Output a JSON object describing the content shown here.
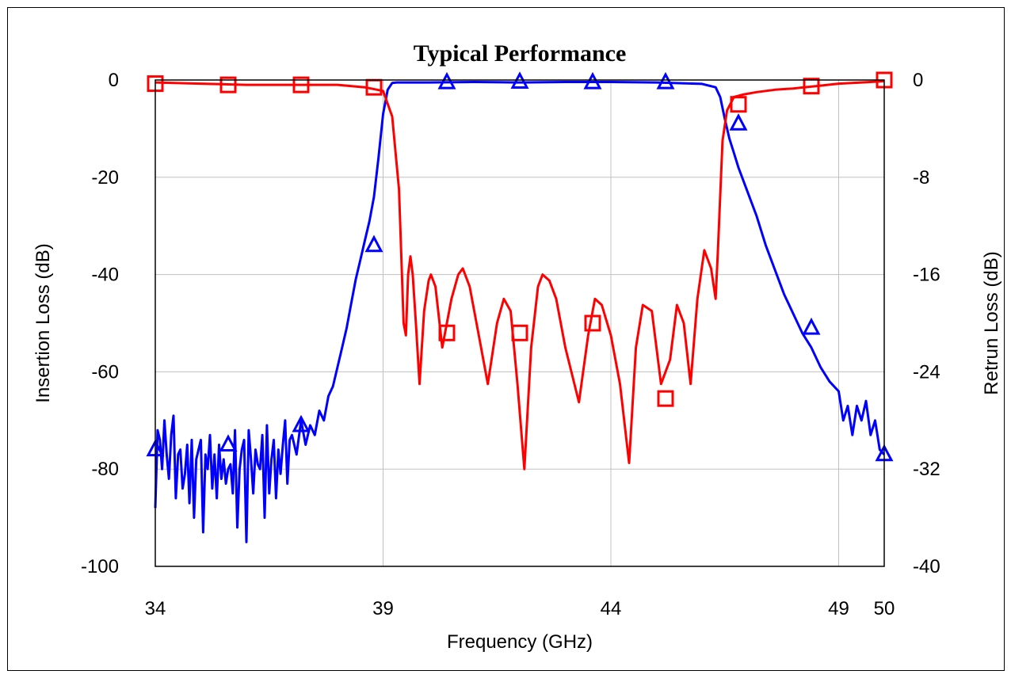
{
  "chart_data": {
    "type": "line",
    "title": "Typical Performance",
    "xlabel": "Frequency (GHz)",
    "ylabel": "Insertion Loss (dB)",
    "y2label": "Retrun Loss (dB)",
    "xlim": [
      34,
      50
    ],
    "ylim": [
      -100,
      0
    ],
    "y2lim": [
      -40,
      0
    ],
    "x_ticks": [
      34,
      39,
      44,
      49,
      50
    ],
    "y_ticks": [
      0,
      -20,
      -40,
      -60,
      -80,
      -100
    ],
    "y2_ticks": [
      0,
      -8,
      -16,
      -24,
      -32,
      -40
    ],
    "grid": true,
    "series": [
      {
        "axis": "left",
        "color": "#0000FF",
        "marker": "triangle",
        "x": [
          34.0,
          34.05,
          34.1,
          34.15,
          34.2,
          34.25,
          34.3,
          34.35,
          34.4,
          34.45,
          34.5,
          34.55,
          34.6,
          34.65,
          34.7,
          34.75,
          34.8,
          34.85,
          34.9,
          34.95,
          35.0,
          35.05,
          35.1,
          35.15,
          35.2,
          35.25,
          35.3,
          35.35,
          35.4,
          35.45,
          35.5,
          35.55,
          35.6,
          35.65,
          35.7,
          35.75,
          35.8,
          35.85,
          35.9,
          35.95,
          36.0,
          36.05,
          36.1,
          36.15,
          36.2,
          36.25,
          36.3,
          36.35,
          36.4,
          36.45,
          36.5,
          36.55,
          36.6,
          36.65,
          36.7,
          36.75,
          36.8,
          36.85,
          36.9,
          36.95,
          37.0,
          37.1,
          37.2,
          37.3,
          37.4,
          37.5,
          37.6,
          37.7,
          37.8,
          37.9,
          38.0,
          38.1,
          38.2,
          38.3,
          38.4,
          38.5,
          38.6,
          38.7,
          38.8,
          38.9,
          39.0,
          39.1,
          39.2,
          39.3,
          39.4,
          39.5,
          39.6,
          39.8,
          40.0,
          41.0,
          42.0,
          43.0,
          44.0,
          45.0,
          46.0,
          46.3,
          46.4,
          46.5,
          46.6,
          46.7,
          46.8,
          47.0,
          47.2,
          47.4,
          47.6,
          47.8,
          48.0,
          48.2,
          48.4,
          48.6,
          48.8,
          49.0,
          49.1,
          49.2,
          49.3,
          49.4,
          49.5,
          49.6,
          49.7,
          49.8,
          49.9,
          50.0
        ],
        "values": [
          -88,
          -72,
          -74,
          -80,
          -70,
          -77,
          -82,
          -73,
          -69,
          -86,
          -77,
          -76,
          -84,
          -81,
          -75,
          -87,
          -74,
          -90,
          -78,
          -76,
          -74,
          -93,
          -77,
          -80,
          -73,
          -84,
          -77,
          -86,
          -75,
          -82,
          -78,
          -83,
          -80,
          -79,
          -85,
          -72,
          -92,
          -80,
          -76,
          -74,
          -95,
          -72,
          -78,
          -85,
          -76,
          -79,
          -80,
          -73,
          -90,
          -71,
          -85,
          -78,
          -74,
          -86,
          -76,
          -81,
          -75,
          -70,
          -83,
          -74,
          -73,
          -77,
          -70,
          -75,
          -71,
          -73,
          -68,
          -70,
          -65,
          -63,
          -59,
          -55,
          -51,
          -46,
          -41,
          -37,
          -33,
          -29,
          -24,
          -16,
          -7,
          -2,
          -0.6,
          -0.5,
          -0.5,
          -0.5,
          -0.5,
          -0.5,
          -0.5,
          -0.4,
          -0.5,
          -0.4,
          -0.4,
          -0.5,
          -0.8,
          -1.5,
          -3.5,
          -8,
          -12,
          -15,
          -18,
          -23,
          -28,
          -34,
          -39,
          -44,
          -48,
          -52,
          -55,
          -59,
          -62,
          -64,
          -70,
          -67,
          -73,
          -67,
          -70,
          -66,
          -73,
          -70,
          -76,
          -77
        ],
        "marker_x": [
          34.0,
          35.6,
          37.2,
          38.8,
          40.4,
          42.0,
          43.6,
          45.2,
          46.8,
          48.4,
          50.0
        ],
        "marker_values": [
          -76,
          -75,
          -71,
          -34,
          -0.5,
          -0.4,
          -0.5,
          -0.5,
          -9,
          -51,
          -77
        ]
      },
      {
        "axis": "right",
        "color": "#FF0000",
        "marker": "square",
        "x": [
          34.0,
          35.0,
          36.0,
          37.0,
          38.0,
          38.6,
          39.0,
          39.2,
          39.35,
          39.45,
          39.5,
          39.55,
          39.6,
          39.65,
          39.72,
          39.8,
          39.9,
          40.0,
          40.05,
          40.15,
          40.3,
          40.5,
          40.65,
          40.75,
          40.9,
          41.1,
          41.3,
          41.5,
          41.65,
          41.8,
          41.95,
          42.1,
          42.25,
          42.4,
          42.5,
          42.65,
          42.8,
          43.0,
          43.3,
          43.5,
          43.65,
          43.8,
          44.0,
          44.2,
          44.4,
          44.55,
          44.7,
          44.9,
          45.1,
          45.3,
          45.45,
          45.6,
          45.75,
          45.9,
          46.05,
          46.2,
          46.3,
          46.35,
          46.45,
          46.55,
          46.7,
          46.9,
          47.2,
          47.6,
          48.0,
          48.5,
          49.0,
          49.5,
          50.0
        ],
        "values": [
          -0.2,
          -0.3,
          -0.4,
          -0.4,
          -0.4,
          -0.6,
          -0.9,
          -3,
          -9,
          -20,
          -21,
          -16,
          -14.5,
          -16,
          -20,
          -25,
          -19,
          -16.5,
          -16,
          -17,
          -22,
          -18,
          -16,
          -15.5,
          -17,
          -21,
          -25,
          -20,
          -18,
          -19,
          -25,
          -32,
          -22,
          -17,
          -16,
          -16.5,
          -18,
          -22,
          -26.5,
          -21,
          -18,
          -18.5,
          -21,
          -25,
          -31.5,
          -22,
          -18.5,
          -19,
          -25,
          -23,
          -18.5,
          -20,
          -25,
          -18,
          -14,
          -15.5,
          -18,
          -14,
          -5,
          -2.5,
          -1.4,
          -1.2,
          -1.0,
          -0.8,
          -0.7,
          -0.5,
          -0.3,
          -0.2,
          -0.1
        ],
        "marker_x": [
          34.0,
          35.6,
          37.2,
          38.8,
          40.4,
          42.0,
          43.6,
          45.2,
          46.8,
          48.4,
          50.0
        ],
        "marker_values": [
          -0.3,
          -0.4,
          -0.4,
          -0.6,
          -20.8,
          -20.8,
          -20,
          -26.2,
          -2,
          -0.5,
          0
        ]
      }
    ]
  }
}
